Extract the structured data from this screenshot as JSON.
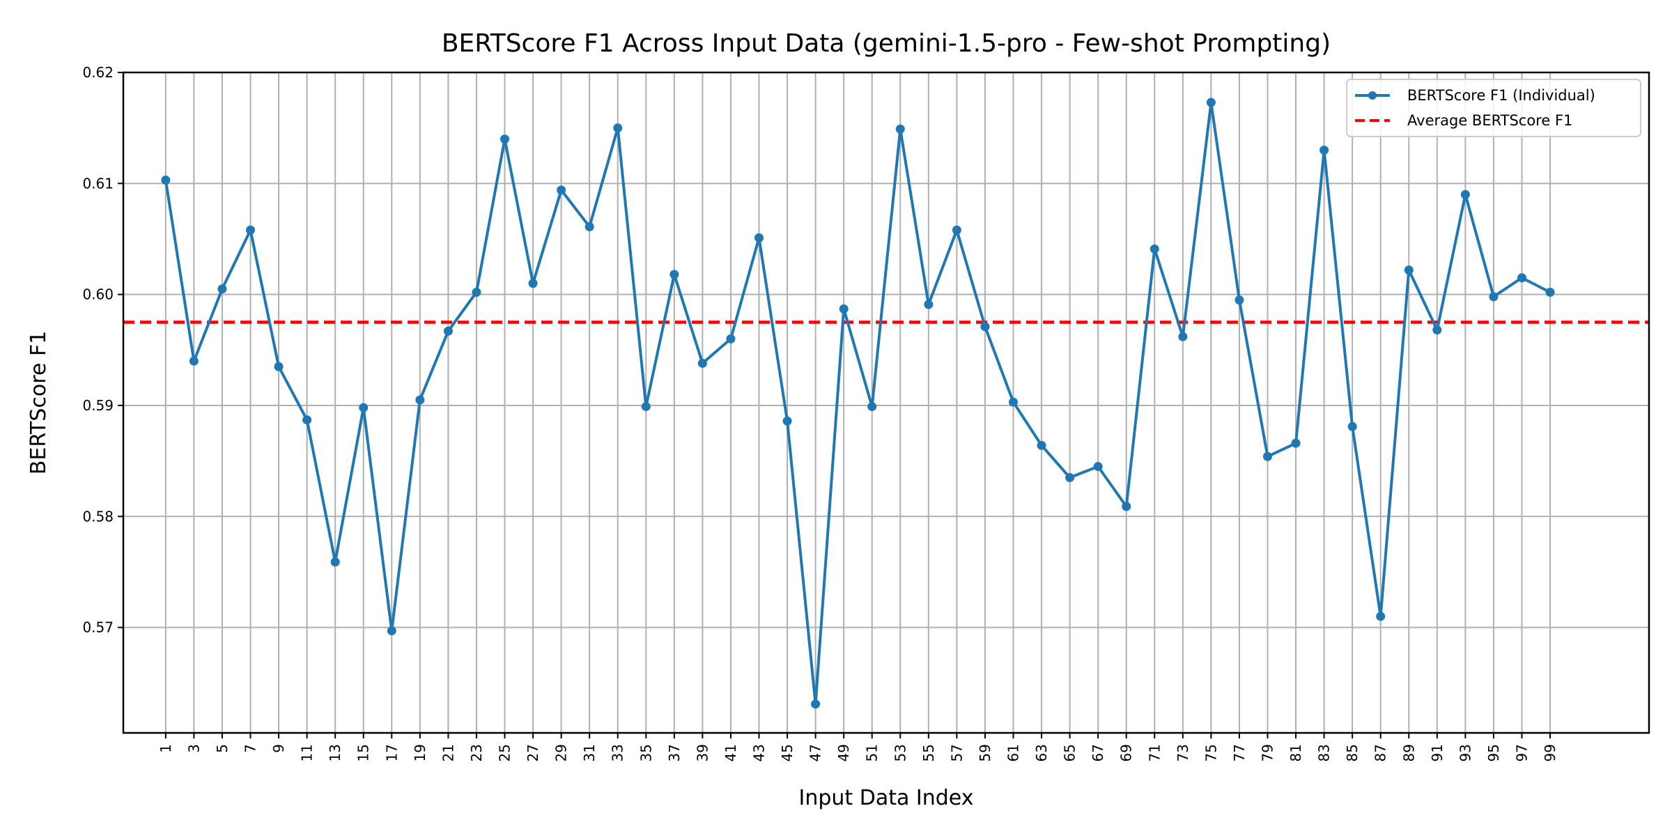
{
  "chart_data": {
    "type": "line",
    "title": "BERTScore F1 Across Input Data (gemini-1.5-pro - Few-shot Prompting)",
    "xlabel": "Input Data Index",
    "ylabel": "BERTScore F1",
    "ylim": [
      0.5605,
      0.62
    ],
    "yticks": [
      "0.57",
      "0.58",
      "0.59",
      "0.60",
      "0.61",
      "0.62"
    ],
    "x": [
      1,
      3,
      5,
      7,
      9,
      11,
      13,
      15,
      17,
      19,
      21,
      23,
      25,
      27,
      29,
      31,
      33,
      35,
      37,
      39,
      41,
      43,
      45,
      47,
      49,
      51,
      53,
      55,
      57,
      59,
      61,
      63,
      65,
      67,
      69,
      71,
      73,
      75,
      77,
      79,
      81,
      83,
      85,
      87,
      89,
      91,
      93,
      95,
      97,
      99
    ],
    "series": [
      {
        "name": "BERTScore F1 (Individual)",
        "color": "#1f77b4",
        "values": [
          0.6103,
          0.594,
          0.6005,
          0.6058,
          0.5935,
          0.5887,
          0.5759,
          0.5898,
          0.5697,
          0.5905,
          0.5967,
          0.6002,
          0.614,
          0.601,
          0.6094,
          0.6061,
          0.615,
          0.5899,
          0.6018,
          0.5938,
          0.596,
          0.6051,
          0.5886,
          0.5631,
          0.5987,
          0.5899,
          0.6149,
          0.5991,
          0.6058,
          0.5971,
          0.5903,
          0.5864,
          0.5835,
          0.5845,
          0.5809,
          0.6041,
          0.5962,
          0.6173,
          0.5995,
          0.5854,
          0.5866,
          0.613,
          0.5881,
          0.571,
          0.6022,
          0.5968,
          0.609,
          0.5998,
          0.6015,
          0.6002
        ]
      }
    ],
    "average": {
      "name": "Average BERTScore F1",
      "value": 0.5975,
      "color": "#ff0000"
    },
    "grid": true,
    "legend_position": "top-right"
  }
}
